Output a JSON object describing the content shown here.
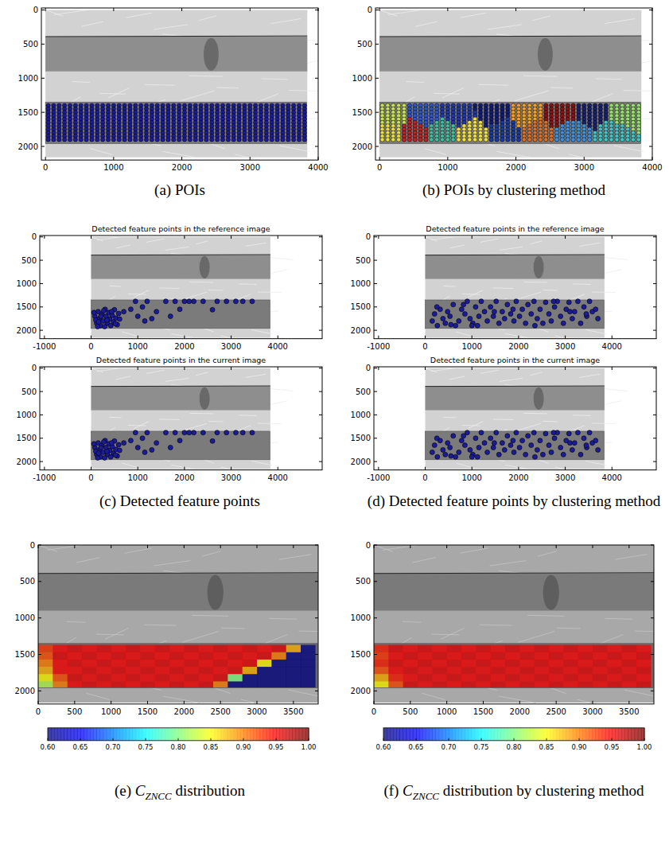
{
  "chart_data": [
    {
      "type": "scatter",
      "caption": "(a) POIs",
      "xlim": [
        -60,
        4000
      ],
      "ylim": [
        2200,
        -30
      ],
      "xticks": [
        0,
        1000,
        2000,
        3000,
        4000
      ],
      "yticks": [
        0,
        500,
        1000,
        1500,
        2000
      ],
      "color": "#1c1c9a",
      "poi_columns": [
        40,
        120,
        200,
        280,
        360,
        440,
        520,
        600,
        680,
        760,
        840,
        920,
        1000,
        1080,
        1160,
        1240,
        1320,
        1400,
        1480,
        1560,
        1640,
        1720,
        1800,
        1880,
        1960,
        2040,
        2120,
        2200,
        2280,
        2360,
        2440,
        2520,
        2600,
        2680,
        2760,
        2840,
        2920,
        3000,
        3080,
        3160,
        3240,
        3320,
        3400,
        3480,
        3560,
        3640,
        3720,
        3800
      ],
      "poi_rows": [
        1400,
        1450,
        1500,
        1550,
        1600,
        1650,
        1700,
        1750,
        1800,
        1850,
        1900
      ]
    },
    {
      "type": "scatter",
      "caption": "(b) POIs by clustering method",
      "xlim": [
        -60,
        4000
      ],
      "ylim": [
        2200,
        -30
      ],
      "xticks": [
        0,
        1000,
        2000,
        3000,
        4000
      ],
      "yticks": [
        0,
        500,
        1000,
        1500,
        2000
      ],
      "poi_columns": [
        40,
        120,
        200,
        280,
        360,
        440,
        520,
        600,
        680,
        760,
        840,
        920,
        1000,
        1080,
        1160,
        1240,
        1320,
        1400,
        1480,
        1560,
        1640,
        1720,
        1800,
        1880,
        1960,
        2040,
        2120,
        2200,
        2280,
        2360,
        2440,
        2520,
        2600,
        2680,
        2760,
        2840,
        2920,
        3000,
        3080,
        3160,
        3240,
        3320,
        3400,
        3480,
        3560,
        3640,
        3720,
        3800
      ],
      "poi_rows": [
        1400,
        1450,
        1500,
        1550,
        1600,
        1650,
        1700,
        1750,
        1800,
        1850,
        1900
      ],
      "clusters": [
        {
          "x": 180,
          "y": 1520,
          "color": "#c8e05a"
        },
        {
          "x": 650,
          "y": 1480,
          "color": "#2f55c8"
        },
        {
          "x": 1150,
          "y": 1490,
          "color": "#2238a8"
        },
        {
          "x": 1650,
          "y": 1480,
          "color": "#141c78"
        },
        {
          "x": 2150,
          "y": 1480,
          "color": "#f0a028"
        },
        {
          "x": 2650,
          "y": 1480,
          "color": "#8a1414"
        },
        {
          "x": 3100,
          "y": 1480,
          "color": "#1a2270"
        },
        {
          "x": 3600,
          "y": 1520,
          "color": "#98e070"
        },
        {
          "x": 120,
          "y": 1840,
          "color": "#e8e040"
        },
        {
          "x": 500,
          "y": 1830,
          "color": "#c02424"
        },
        {
          "x": 900,
          "y": 1820,
          "color": "#40c0a0"
        },
        {
          "x": 1350,
          "y": 1830,
          "color": "#f0e048"
        },
        {
          "x": 1800,
          "y": 1830,
          "color": "#1a3aa8"
        },
        {
          "x": 2300,
          "y": 1830,
          "color": "#e07024"
        },
        {
          "x": 2850,
          "y": 1830,
          "color": "#4090e0"
        },
        {
          "x": 3450,
          "y": 1840,
          "color": "#40c8c8"
        }
      ]
    },
    {
      "type": "scatter",
      "caption": "(c) Detected feature points",
      "titles": [
        "Detected feature points in the reference image",
        "Detected feature points in the current image"
      ],
      "xlim": [
        -1100,
        4950
      ],
      "ylim": [
        2180,
        -30
      ],
      "xticks": [
        -1000,
        0,
        1000,
        2000,
        3000,
        4000
      ],
      "yticks": [
        0,
        500,
        1000,
        1500,
        2000
      ],
      "color": "#1c1c9a",
      "x": [
        80,
        120,
        150,
        180,
        200,
        230,
        260,
        300,
        320,
        350,
        380,
        400,
        420,
        450,
        480,
        500,
        530,
        560,
        590,
        100,
        140,
        210,
        270,
        340,
        440,
        520,
        60,
        610,
        160,
        290,
        700,
        850,
        1000,
        1100,
        1150,
        1300,
        1400,
        1600,
        1700,
        1800,
        2000,
        2100,
        2200,
        2400,
        2600,
        2700,
        2900,
        3100,
        3250,
        3450,
        1900,
        1200,
        950
      ],
      "y": [
        1700,
        1850,
        1600,
        1750,
        1900,
        1650,
        1800,
        1550,
        1700,
        1850,
        1620,
        1760,
        1900,
        1680,
        1820,
        1560,
        1740,
        1880,
        1640,
        1780,
        1920,
        1700,
        1580,
        1780,
        1600,
        1860,
        1620,
        1760,
        1820,
        1920,
        1600,
        1550,
        1700,
        1500,
        1800,
        1750,
        1600,
        1380,
        1700,
        1380,
        1380,
        1380,
        1380,
        1380,
        1560,
        1380,
        1380,
        1380,
        1380,
        1380,
        1550,
        1380,
        1380
      ]
    },
    {
      "type": "scatter",
      "caption": "(d) Detected feature points by clustering method",
      "titles": [
        "Detected feature points in the reference image",
        "Detected feature points in the current image"
      ],
      "xlim": [
        -1100,
        4950
      ],
      "ylim": [
        2180,
        -30
      ],
      "xticks": [
        -1000,
        0,
        1000,
        2000,
        3000,
        4000
      ],
      "yticks": [
        0,
        500,
        1000,
        1500,
        2000
      ],
      "color": "#1c1c9a",
      "x": [
        150,
        200,
        260,
        320,
        380,
        430,
        480,
        530,
        600,
        650,
        720,
        780,
        850,
        900,
        960,
        1020,
        1080,
        1150,
        1200,
        1270,
        1330,
        1400,
        1460,
        1520,
        1580,
        1650,
        1700,
        1760,
        1830,
        1900,
        1950,
        2020,
        2080,
        2150,
        2200,
        2270,
        2330,
        2400,
        2460,
        2520,
        2580,
        2650,
        2700,
        2770,
        2830,
        2900,
        2960,
        3020,
        3080,
        3150,
        3200,
        3270,
        3330,
        3400,
        3460,
        3520,
        3580,
        3650,
        3700,
        250,
        550,
        820,
        1120,
        1480,
        1880,
        2350,
        2750,
        3100,
        3450,
        1000
      ],
      "y": [
        1800,
        1650,
        1900,
        1550,
        1750,
        1850,
        1600,
        1700,
        1450,
        1900,
        1800,
        1550,
        1650,
        1380,
        1750,
        1850,
        1500,
        1700,
        1380,
        1600,
        1800,
        1500,
        1700,
        1380,
        1850,
        1600,
        1750,
        1450,
        1650,
        1800,
        1380,
        1700,
        1550,
        1850,
        1450,
        1650,
        1380,
        1750,
        1550,
        1850,
        1400,
        1650,
        1800,
        1500,
        1380,
        1700,
        1850,
        1550,
        1400,
        1750,
        1600,
        1380,
        1850,
        1500,
        1700,
        1380,
        1600,
        1550,
        1750,
        1500,
        1880,
        1450,
        1900,
        1600,
        1550,
        1900,
        1380,
        1600,
        1650,
        1900
      ]
    },
    {
      "type": "heatmap",
      "caption": {
        "prefix": "(e)",
        "symbol": "C",
        "subscript": "ZNCC",
        "suffix": "distribution"
      },
      "xlim": [
        0,
        3840
      ],
      "ylim": [
        2180,
        0
      ],
      "xticks": [
        0,
        500,
        1000,
        1500,
        2000,
        2500,
        3000,
        3500
      ],
      "yticks": [
        0,
        500,
        1000,
        1500,
        2000
      ],
      "x_edges": [
        0,
        200,
        400,
        600,
        800,
        1000,
        1200,
        1400,
        1600,
        1800,
        2000,
        2200,
        2400,
        2600,
        2800,
        3000,
        3200,
        3400,
        3600,
        3800
      ],
      "y_edges": [
        1370,
        1470,
        1570,
        1670,
        1770,
        1870,
        1950
      ],
      "cells": [
        [
          0.93,
          0.95,
          0.96,
          0.95,
          0.96,
          0.95,
          0.96,
          0.95,
          0.96,
          0.95,
          0.96,
          0.95,
          0.96,
          0.95,
          0.96,
          0.95,
          0.96,
          0.88,
          0.6
        ],
        [
          0.92,
          0.96,
          0.95,
          0.96,
          0.95,
          0.96,
          0.95,
          0.96,
          0.95,
          0.96,
          0.95,
          0.96,
          0.95,
          0.96,
          0.95,
          0.96,
          0.9,
          0.6,
          0.6
        ],
        [
          0.9,
          0.95,
          0.96,
          0.95,
          0.96,
          0.95,
          0.96,
          0.95,
          0.96,
          0.95,
          0.96,
          0.95,
          0.96,
          0.95,
          0.96,
          0.85,
          0.6,
          0.6,
          0.6
        ],
        [
          0.88,
          0.95,
          0.95,
          0.96,
          0.95,
          0.96,
          0.95,
          0.96,
          0.95,
          0.96,
          0.95,
          0.96,
          0.95,
          0.96,
          0.88,
          0.6,
          0.6,
          0.6,
          0.6
        ],
        [
          0.85,
          0.92,
          0.96,
          0.95,
          0.96,
          0.95,
          0.96,
          0.95,
          0.96,
          0.95,
          0.96,
          0.95,
          0.96,
          0.8,
          0.6,
          0.6,
          0.6,
          0.6,
          0.6
        ],
        [
          0.82,
          0.9,
          0.95,
          0.96,
          0.95,
          0.96,
          0.95,
          0.96,
          0.95,
          0.96,
          0.95,
          0.96,
          0.9,
          0.6,
          0.6,
          0.6,
          0.6,
          0.6,
          0.6
        ]
      ],
      "colorbar": {
        "range": [
          0.6,
          1.0
        ],
        "ticks": [
          {
            "value": 0.6,
            "label": "0.60"
          },
          0.65,
          {
            "value": 0.7,
            "label": "0.70"
          },
          0.75,
          {
            "value": 0.8,
            "label": "0.80"
          },
          0.85,
          {
            "value": 0.9,
            "label": "0.90"
          },
          0.95,
          {
            "value": 1.0,
            "label": "1.00"
          }
        ]
      }
    },
    {
      "type": "heatmap",
      "caption": {
        "prefix": "(f)",
        "symbol": "C",
        "subscript": "ZNCC",
        "suffix": "distribution by clustering method"
      },
      "xlim": [
        0,
        3840
      ],
      "ylim": [
        2180,
        0
      ],
      "xticks": [
        0,
        500,
        1000,
        1500,
        2000,
        2500,
        3000,
        3500
      ],
      "yticks": [
        0,
        500,
        1000,
        1500,
        2000
      ],
      "x_edges": [
        0,
        200,
        400,
        600,
        800,
        1000,
        1200,
        1400,
        1600,
        1800,
        2000,
        2200,
        2400,
        2600,
        2800,
        3000,
        3200,
        3400,
        3600,
        3800
      ],
      "y_edges": [
        1370,
        1470,
        1570,
        1670,
        1770,
        1870,
        1950
      ],
      "cells": [
        [
          0.94,
          0.96,
          0.95,
          0.96,
          0.95,
          0.96,
          0.95,
          0.96,
          0.95,
          0.96,
          0.95,
          0.96,
          0.95,
          0.96,
          0.95,
          0.96,
          0.95,
          0.96,
          0.95
        ],
        [
          0.93,
          0.95,
          0.96,
          0.95,
          0.96,
          0.95,
          0.96,
          0.95,
          0.96,
          0.95,
          0.96,
          0.95,
          0.96,
          0.95,
          0.96,
          0.95,
          0.96,
          0.95,
          0.96
        ],
        [
          0.94,
          0.96,
          0.95,
          0.96,
          0.95,
          0.96,
          0.95,
          0.96,
          0.95,
          0.96,
          0.95,
          0.96,
          0.95,
          0.96,
          0.95,
          0.96,
          0.95,
          0.96,
          0.95
        ],
        [
          0.92,
          0.95,
          0.96,
          0.95,
          0.96,
          0.95,
          0.96,
          0.95,
          0.96,
          0.95,
          0.96,
          0.95,
          0.96,
          0.95,
          0.96,
          0.95,
          0.96,
          0.95,
          0.96
        ],
        [
          0.88,
          0.94,
          0.95,
          0.96,
          0.95,
          0.96,
          0.95,
          0.96,
          0.95,
          0.96,
          0.95,
          0.96,
          0.95,
          0.96,
          0.95,
          0.96,
          0.95,
          0.96,
          0.95
        ],
        [
          0.85,
          0.92,
          0.96,
          0.95,
          0.96,
          0.95,
          0.96,
          0.95,
          0.96,
          0.95,
          0.96,
          0.95,
          0.96,
          0.95,
          0.96,
          0.95,
          0.96,
          0.95,
          0.96
        ]
      ],
      "colorbar": {
        "range": [
          0.6,
          1.0
        ],
        "ticks": [
          {
            "value": 0.6,
            "label": "0.60"
          },
          0.65,
          {
            "value": 0.7,
            "label": "0.70"
          },
          0.75,
          {
            "value": 0.8,
            "label": "0.80"
          },
          0.85,
          {
            "value": 0.9,
            "label": "0.90"
          },
          0.95,
          {
            "value": 1.0,
            "label": "1.00"
          }
        ]
      }
    }
  ]
}
